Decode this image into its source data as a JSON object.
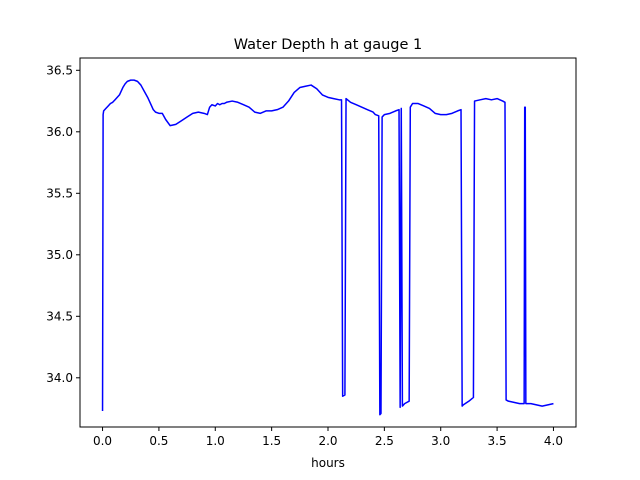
{
  "chart_data": {
    "type": "line",
    "title": "Water Depth h at gauge 1",
    "xlabel": "hours",
    "ylabel": "",
    "xlim": [
      -0.2,
      4.2
    ],
    "ylim": [
      33.6,
      36.6
    ],
    "xticks": [
      0.0,
      0.5,
      1.0,
      1.5,
      2.0,
      2.5,
      3.0,
      3.5,
      4.0
    ],
    "xtick_labels": [
      "0.0",
      "0.5",
      "1.0",
      "1.5",
      "2.0",
      "2.5",
      "3.0",
      "3.5",
      "4.0"
    ],
    "yticks": [
      34.0,
      34.5,
      35.0,
      35.5,
      36.0,
      36.5
    ],
    "ytick_labels": [
      "34.0",
      "34.5",
      "35.0",
      "35.5",
      "36.0",
      "36.5"
    ],
    "grid": false,
    "legend": "none",
    "series": [
      {
        "color": "#0000ff",
        "x": [
          0.0,
          0.005,
          0.01,
          0.03,
          0.05,
          0.07,
          0.09,
          0.11,
          0.13,
          0.15,
          0.18,
          0.2,
          0.22,
          0.25,
          0.28,
          0.31,
          0.34,
          0.37,
          0.4,
          0.43,
          0.45,
          0.47,
          0.5,
          0.53,
          0.56,
          0.6,
          0.65,
          0.7,
          0.75,
          0.8,
          0.85,
          0.9,
          0.93,
          0.95,
          0.97,
          1.0,
          1.02,
          1.04,
          1.06,
          1.08,
          1.1,
          1.15,
          1.2,
          1.25,
          1.3,
          1.35,
          1.4,
          1.45,
          1.48,
          1.5,
          1.55,
          1.6,
          1.65,
          1.7,
          1.75,
          1.8,
          1.85,
          1.9,
          1.95,
          2.0,
          2.05,
          2.1,
          2.12,
          2.13,
          2.15,
          2.16,
          2.2,
          2.25,
          2.3,
          2.35,
          2.4,
          2.42,
          2.45,
          2.46,
          2.47,
          2.48,
          2.49,
          2.5,
          2.55,
          2.6,
          2.63,
          2.64,
          2.65,
          2.66,
          2.67,
          2.68,
          2.7,
          2.72,
          2.73,
          2.75,
          2.8,
          2.85,
          2.9,
          2.95,
          3.0,
          3.05,
          3.1,
          3.15,
          3.18,
          3.19,
          3.2,
          3.25,
          3.29,
          3.3,
          3.35,
          3.4,
          3.45,
          3.5,
          3.55,
          3.57,
          3.58,
          3.6,
          3.65,
          3.7,
          3.74,
          3.745,
          3.75,
          3.755,
          3.76,
          3.8,
          3.85,
          3.9,
          3.95,
          4.0
        ],
        "y": [
          33.73,
          36.14,
          36.17,
          36.19,
          36.21,
          36.23,
          36.24,
          36.26,
          36.28,
          36.3,
          36.36,
          36.39,
          36.41,
          36.42,
          36.42,
          36.41,
          36.38,
          36.33,
          36.28,
          36.22,
          36.18,
          36.16,
          36.15,
          36.15,
          36.1,
          36.05,
          36.06,
          36.09,
          36.12,
          36.15,
          36.16,
          36.15,
          36.14,
          36.2,
          36.22,
          36.21,
          36.23,
          36.22,
          36.23,
          36.23,
          36.24,
          36.25,
          36.24,
          36.22,
          36.2,
          36.16,
          36.15,
          36.17,
          36.17,
          36.17,
          36.18,
          36.2,
          36.25,
          36.32,
          36.36,
          36.37,
          36.38,
          36.35,
          36.3,
          36.28,
          36.27,
          36.26,
          36.26,
          33.85,
          33.86,
          36.27,
          36.24,
          36.22,
          36.2,
          36.18,
          36.16,
          36.14,
          36.13,
          33.7,
          33.71,
          36.12,
          36.13,
          36.14,
          36.15,
          36.17,
          36.18,
          33.76,
          36.19,
          33.77,
          33.78,
          33.79,
          33.8,
          33.81,
          36.2,
          36.23,
          36.23,
          36.21,
          36.19,
          36.15,
          36.14,
          36.14,
          36.15,
          36.17,
          36.18,
          33.77,
          33.78,
          33.81,
          33.84,
          36.25,
          36.26,
          36.27,
          36.26,
          36.27,
          36.25,
          36.24,
          33.82,
          33.81,
          33.8,
          33.79,
          33.79,
          36.2,
          36.2,
          33.79,
          33.79,
          33.79,
          33.78,
          33.77,
          33.78,
          33.79
        ]
      }
    ]
  }
}
